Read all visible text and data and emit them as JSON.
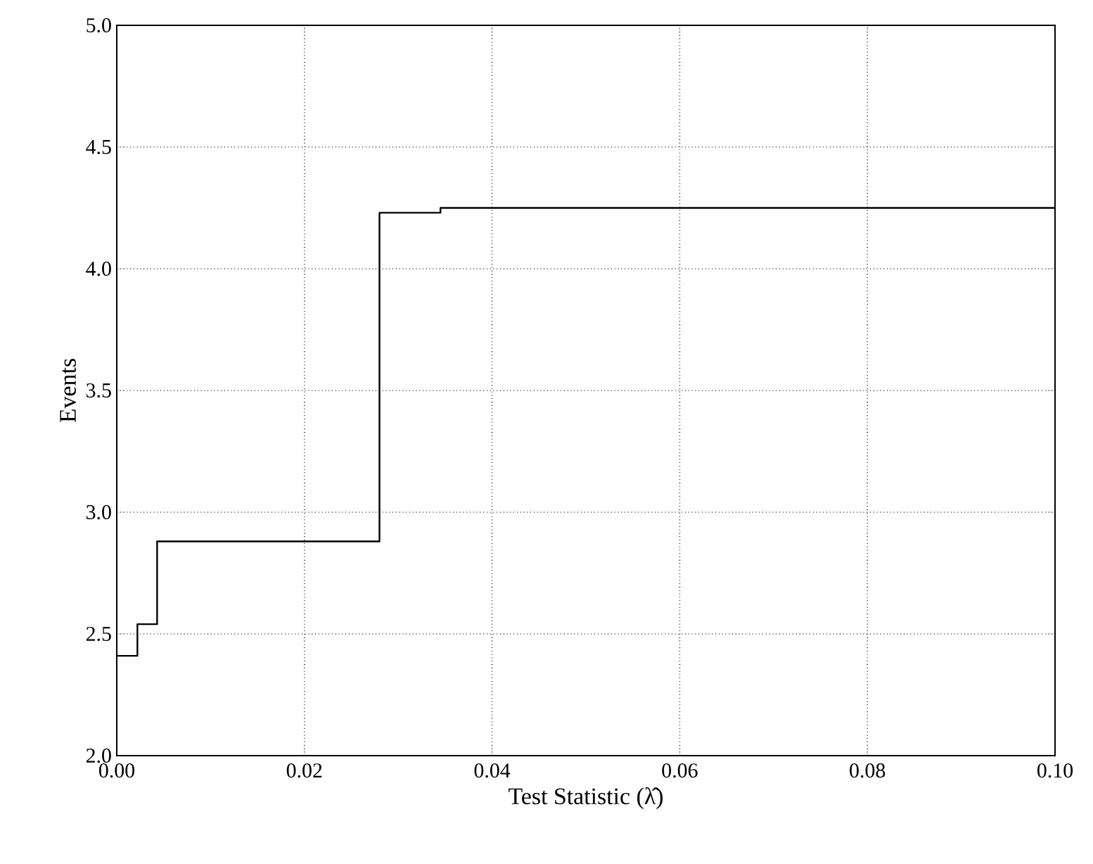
{
  "chart_data": {
    "type": "step",
    "xlabel": "Test Statistic (λ̂)",
    "ylabel": "Events",
    "x": [
      0,
      0.0022,
      0.0043,
      0.028,
      0.0345,
      0.1
    ],
    "series": [
      {
        "color": "#000000",
        "values": [
          2.41,
          2.54,
          2.88,
          4.23,
          4.25,
          4.25
        ]
      }
    ],
    "xlim": [
      0,
      0.1
    ],
    "ylim": [
      2.0,
      5.0
    ],
    "xticks": [
      {
        "value": 0,
        "label": "0.00"
      },
      {
        "value": 0.02,
        "label": "0.02"
      },
      {
        "value": 0.04,
        "label": "0.04"
      },
      {
        "value": 0.06,
        "label": "0.06"
      },
      {
        "value": 0.08,
        "label": "0.08"
      },
      {
        "value": 0.1,
        "label": "0.10"
      }
    ],
    "yticks": [
      {
        "value": 2,
        "label": "2.0"
      },
      {
        "value": 2.5,
        "label": "2.5"
      },
      {
        "value": 3,
        "label": "3.0"
      },
      {
        "value": 3.5,
        "label": "3.5"
      },
      {
        "value": 4,
        "label": "4.0"
      },
      {
        "value": 4.5,
        "label": "4.5"
      },
      {
        "value": 5,
        "label": "5.0"
      }
    ],
    "grid": true,
    "line_style": "solid"
  }
}
